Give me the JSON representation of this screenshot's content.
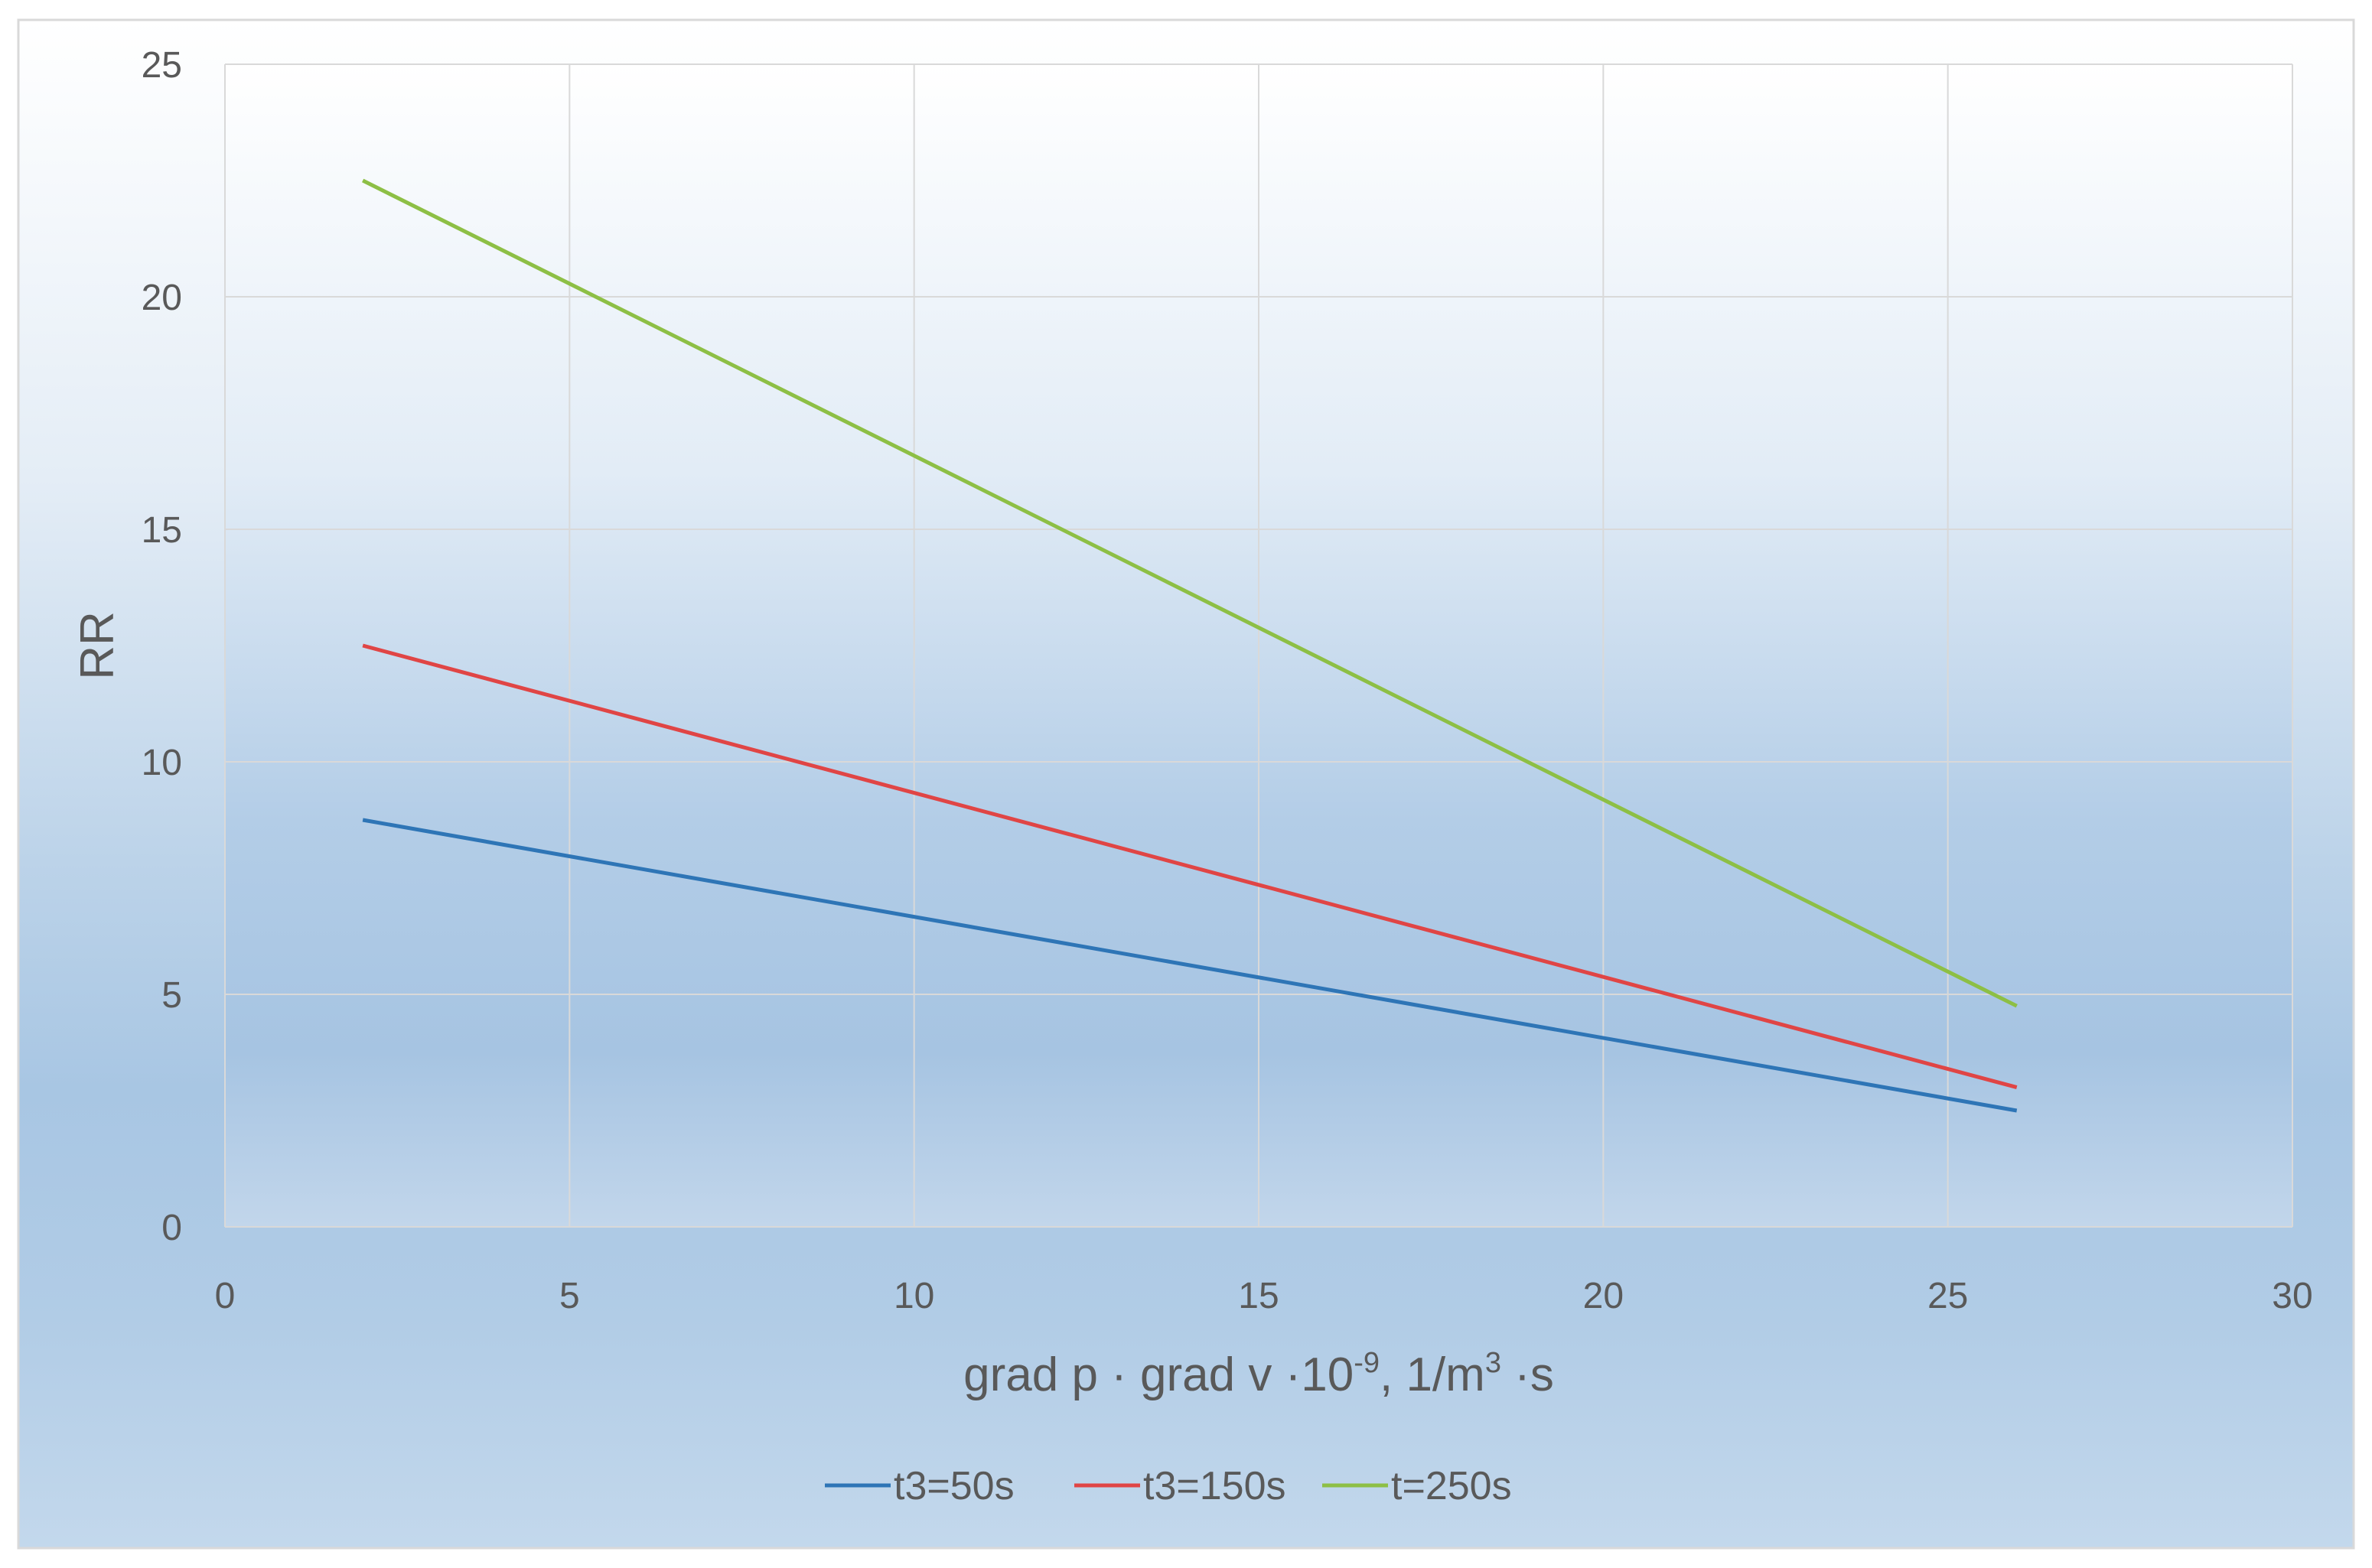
{
  "chart_data": {
    "type": "line",
    "title": "",
    "xlabel": {
      "prefix": "grad p · grad v ·10",
      "exp1": "-9",
      "mid": ", 1/m",
      "exp2": "3",
      "suffix": " ·s"
    },
    "ylabel": "RR",
    "xlim": [
      0,
      30
    ],
    "ylim": [
      0,
      25
    ],
    "xticks": [
      "0",
      "5",
      "10",
      "15",
      "20",
      "25",
      "30"
    ],
    "yticks": [
      "0",
      "5",
      "10",
      "15",
      "20",
      "25"
    ],
    "grid": true,
    "legend_position": "bottom",
    "series": [
      {
        "name": "t3=50s",
        "color": "#2E75B6",
        "points": [
          [
            2,
            8.75
          ],
          [
            26,
            2.5
          ]
        ]
      },
      {
        "name": "t3=150s",
        "color": "#E04545",
        "points": [
          [
            2,
            12.5
          ],
          [
            26,
            3.0
          ]
        ]
      },
      {
        "name": "t=250s",
        "color": "#8DBF45",
        "points": [
          [
            2,
            22.5
          ],
          [
            26,
            4.75
          ]
        ]
      }
    ]
  }
}
